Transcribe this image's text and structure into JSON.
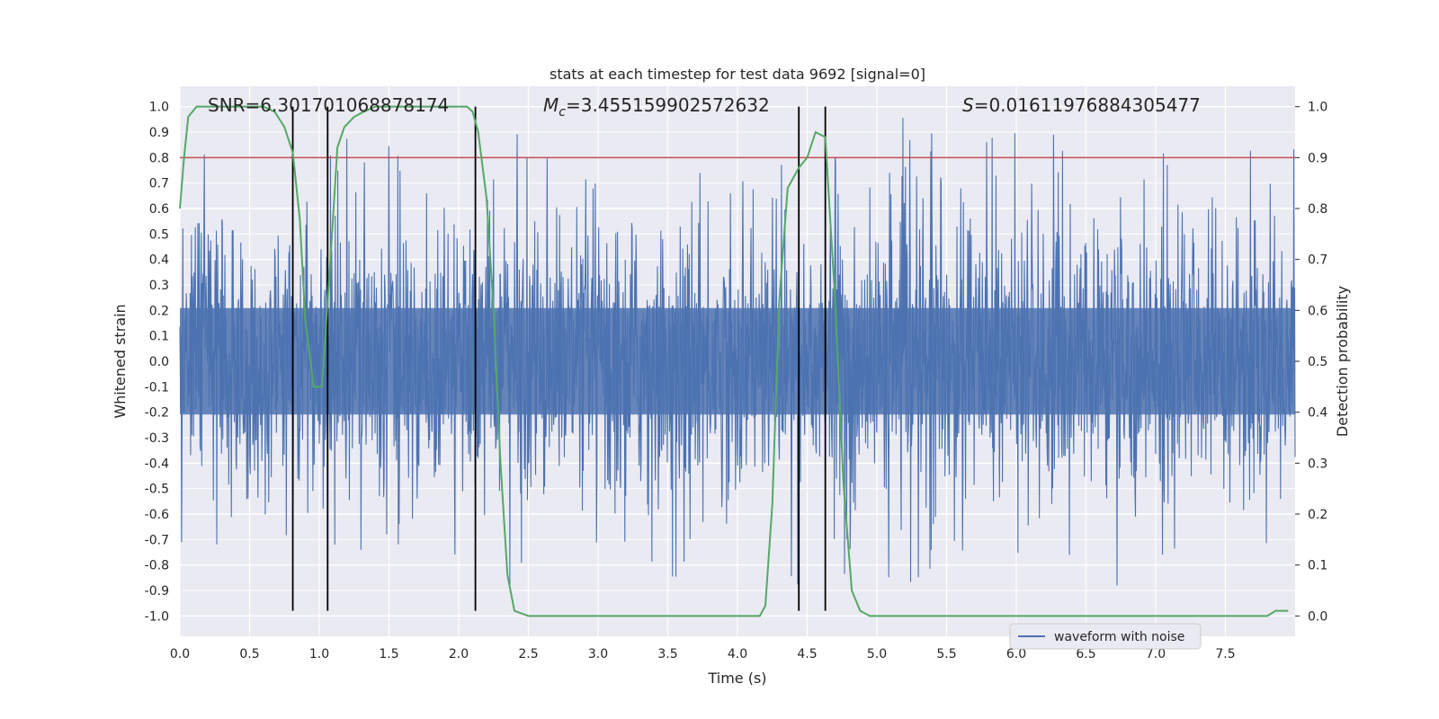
{
  "chart_data": {
    "type": "line",
    "title": "stats at each timestep for test data 9692 [signal=0]",
    "xlabel": "Time (s)",
    "ylabel_left": "Whitened strain",
    "ylabel_right": "Detection probability",
    "xlim": [
      0.0,
      8.0
    ],
    "ylim_left": [
      -1.08,
      1.08
    ],
    "ylim_right": [
      -0.04,
      1.04
    ],
    "x_ticks": [
      "0.0",
      "0.5",
      "1.0",
      "1.5",
      "2.0",
      "2.5",
      "3.0",
      "3.5",
      "4.0",
      "4.5",
      "5.0",
      "5.5",
      "6.0",
      "6.5",
      "7.0",
      "7.5"
    ],
    "y_left_ticks": [
      "1.0",
      "0.9",
      "0.8",
      "0.7",
      "0.6",
      "0.5",
      "0.4",
      "0.3",
      "0.2",
      "0.1",
      "0.0",
      "-0.1",
      "-0.2",
      "-0.3",
      "-0.4",
      "-0.5",
      "-0.6",
      "-0.7",
      "-0.8",
      "-0.9",
      "-1.0"
    ],
    "y_right_ticks": [
      "1.0",
      "0.9",
      "0.8",
      "0.7",
      "0.6",
      "0.5",
      "0.4",
      "0.3",
      "0.2",
      "0.1",
      "0.0"
    ],
    "annotations": {
      "snr": "SNR=6.301701068878174",
      "mc_symbol": "M",
      "mc_sub": "c",
      "mc_value": "=3.455159902572632",
      "s_symbol": "S",
      "s_value": "=0.01611976884305477"
    },
    "threshold": {
      "value": 0.9,
      "axis": "right",
      "color": "#c44e52"
    },
    "vertical_lines": [
      0.81,
      1.06,
      2.12,
      4.44,
      4.63
    ],
    "vertical_line_range": [
      -0.98,
      1.0
    ],
    "series": [
      {
        "name": "waveform with noise",
        "axis": "left",
        "color": "#4c72b0",
        "description": "whitened strain noise, 8 s",
        "envelope_typical": 0.38,
        "max_excursion": 1.0
      },
      {
        "name": "detection probability",
        "axis": "right",
        "color": "#55a868",
        "x": [
          0.0,
          0.03,
          0.06,
          0.12,
          0.2,
          0.3,
          0.4,
          0.5,
          0.6,
          0.68,
          0.75,
          0.81,
          0.86,
          0.9,
          0.96,
          1.02,
          1.08,
          1.13,
          1.18,
          1.25,
          1.32,
          1.4,
          1.5,
          1.6,
          1.7,
          1.8,
          1.9,
          2.0,
          2.06,
          2.1,
          2.14,
          2.2,
          2.25,
          2.3,
          2.35,
          2.4,
          2.5,
          2.6,
          2.7,
          2.8,
          2.9,
          3.0,
          3.1,
          3.2,
          3.3,
          3.4,
          3.5,
          3.6,
          3.7,
          3.8,
          3.9,
          4.0,
          4.1,
          4.16,
          4.2,
          4.25,
          4.3,
          4.36,
          4.44,
          4.5,
          4.56,
          4.63,
          4.7,
          4.76,
          4.82,
          4.88,
          4.95,
          5.0,
          5.2,
          5.4,
          5.6,
          5.8,
          6.0,
          6.2,
          6.4,
          6.6,
          6.8,
          7.0,
          7.2,
          7.35,
          7.5,
          7.7,
          7.8,
          7.86,
          7.9,
          7.95
        ],
        "y": [
          0.8,
          0.9,
          0.98,
          1.0,
          1.0,
          1.0,
          1.0,
          1.0,
          1.0,
          0.99,
          0.96,
          0.91,
          0.78,
          0.58,
          0.45,
          0.45,
          0.7,
          0.92,
          0.96,
          0.98,
          0.99,
          1.0,
          1.0,
          1.0,
          1.0,
          1.0,
          1.0,
          1.0,
          1.0,
          0.99,
          0.95,
          0.82,
          0.6,
          0.3,
          0.08,
          0.01,
          0.0,
          0.0,
          0.0,
          0.0,
          0.0,
          0.0,
          0.0,
          0.0,
          0.0,
          0.0,
          0.0,
          0.0,
          0.0,
          0.0,
          0.0,
          0.0,
          0.0,
          0.0,
          0.02,
          0.22,
          0.62,
          0.84,
          0.88,
          0.9,
          0.95,
          0.94,
          0.62,
          0.26,
          0.05,
          0.01,
          0.0,
          0.0,
          0.0,
          0.0,
          0.0,
          0.0,
          0.0,
          0.0,
          0.0,
          0.0,
          0.0,
          0.0,
          0.0,
          0.0,
          0.0,
          0.0,
          0.0,
          0.01,
          0.01,
          0.01
        ]
      }
    ],
    "legend": {
      "label": "waveform with noise",
      "loc": "lower-right"
    },
    "grid": true
  },
  "colors": {
    "axes_bg": "#eaeaf2",
    "grid": "#ffffff",
    "waveform": "#4c72b0",
    "probability": "#55a868",
    "threshold": "#c44e52",
    "marker_lines": "#000000"
  }
}
